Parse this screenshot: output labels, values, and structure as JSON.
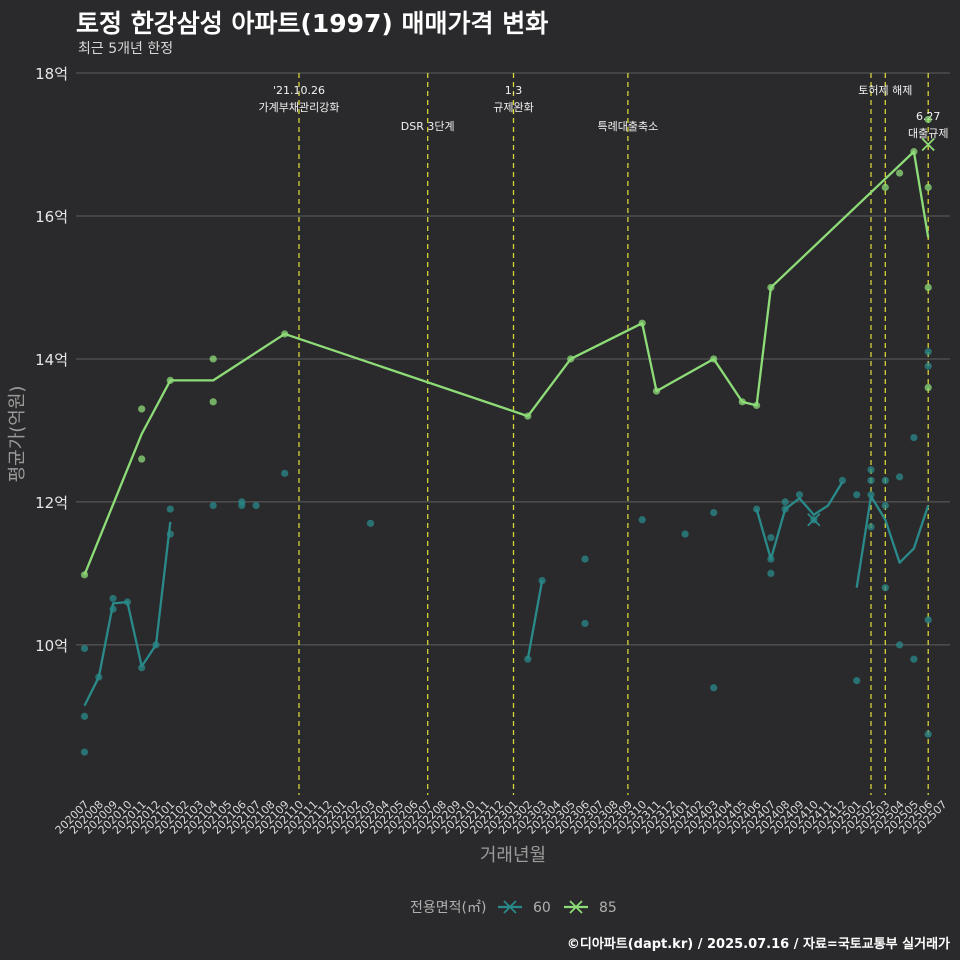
{
  "title": "토정 한강삼성 아파트(1997) 매매가격 변화",
  "subtitle": "최근 5개년 한정",
  "caption": "©디아파트(dapt.kr) / 2025.07.16 / 자료=국토교통부 실거래가",
  "colors": {
    "s60": "#2a8a8a",
    "s85": "#8edc78",
    "vline": "#d6d33a",
    "grid": "#5f5f5f",
    "text": "#e6e6e6",
    "axis_title": "#9a9a9a"
  },
  "chart_data": {
    "type": "line",
    "title": "토정 한강삼성 아파트(1997) 매매가격 변화",
    "xlabel": "거래년월",
    "ylabel": "평균가(억원)",
    "ylim": [
      7.9,
      18.0
    ],
    "yticks": [
      10,
      12,
      14,
      16,
      18
    ],
    "ytick_labels": [
      "10억",
      "12억",
      "14억",
      "16억",
      "18억"
    ],
    "categories": [
      "202007",
      "202008",
      "202009",
      "202010",
      "202011",
      "202012",
      "202101",
      "202102",
      "202103",
      "202104",
      "202105",
      "202106",
      "202107",
      "202108",
      "202109",
      "202110",
      "202111",
      "202112",
      "202201",
      "202202",
      "202203",
      "202204",
      "202205",
      "202206",
      "202207",
      "202208",
      "202209",
      "202210",
      "202211",
      "202212",
      "202301",
      "202302",
      "202303",
      "202304",
      "202305",
      "202306",
      "202307",
      "202308",
      "202309",
      "202310",
      "202311",
      "202312",
      "202401",
      "202402",
      "202403",
      "202404",
      "202405",
      "202406",
      "202407",
      "202408",
      "202409",
      "202410",
      "202411",
      "202412",
      "202501",
      "202502",
      "202503",
      "202504",
      "202505",
      "202506",
      "202507"
    ],
    "legend_title": "전용면적(㎡)",
    "series": [
      {
        "name": "60",
        "line": [
          [
            0,
            9.15
          ],
          [
            1,
            9.55
          ],
          [
            2,
            10.58
          ],
          [
            3,
            10.6
          ],
          [
            4,
            9.7
          ],
          [
            5,
            10.0
          ],
          [
            6,
            11.72
          ],
          null,
          [
            31,
            9.8
          ],
          [
            32,
            10.9
          ],
          null,
          [
            47,
            11.9
          ],
          [
            48,
            11.2
          ],
          [
            49,
            11.9
          ],
          [
            50,
            12.05
          ],
          [
            51,
            11.82
          ],
          [
            52,
            11.95
          ],
          [
            53,
            12.28
          ],
          null,
          [
            54,
            10.8
          ],
          [
            55,
            12.08
          ],
          [
            56,
            11.75
          ],
          [
            57,
            11.15
          ],
          [
            58,
            11.35
          ],
          [
            59,
            11.95
          ]
        ],
        "points": [
          [
            0,
            9.95
          ],
          [
            0,
            9.0
          ],
          [
            0,
            8.5
          ],
          [
            1,
            9.55
          ],
          [
            2,
            10.65
          ],
          [
            2,
            10.5
          ],
          [
            3,
            10.6
          ],
          [
            4,
            9.68
          ],
          [
            5,
            10.0
          ],
          [
            6,
            11.9
          ],
          [
            6,
            11.55
          ],
          [
            9,
            11.95
          ],
          [
            11,
            12.0
          ],
          [
            11,
            11.95
          ],
          [
            12,
            11.95
          ],
          [
            14,
            12.4
          ],
          [
            20,
            11.7
          ],
          [
            31,
            9.8
          ],
          [
            32,
            10.9
          ],
          [
            35,
            11.2
          ],
          [
            35,
            10.3
          ],
          [
            39,
            11.75
          ],
          [
            42,
            11.55
          ],
          [
            44,
            11.85
          ],
          [
            44,
            9.4
          ],
          [
            47,
            11.9
          ],
          [
            48,
            11.5
          ],
          [
            48,
            11.2
          ],
          [
            48,
            11.0
          ],
          [
            49,
            12.0
          ],
          [
            49,
            11.9
          ],
          [
            50,
            12.1
          ],
          [
            51,
            11.75
          ],
          [
            53,
            12.3
          ],
          [
            54,
            12.1
          ],
          [
            54,
            9.5
          ],
          [
            55,
            12.45
          ],
          [
            55,
            12.3
          ],
          [
            55,
            12.1
          ],
          [
            55,
            11.65
          ],
          [
            56,
            12.3
          ],
          [
            56,
            11.95
          ],
          [
            56,
            10.8
          ],
          [
            57,
            12.35
          ],
          [
            57,
            10.0
          ],
          [
            58,
            12.9
          ],
          [
            58,
            9.8
          ],
          [
            59,
            14.1
          ],
          [
            59,
            13.9
          ],
          [
            59,
            10.35
          ],
          [
            59,
            8.75
          ]
        ],
        "marker_x": [
          [
            51,
            11.75
          ]
        ]
      },
      {
        "name": "85",
        "line": [
          [
            0,
            10.98
          ],
          [
            4,
            12.95
          ],
          [
            6,
            13.7
          ],
          [
            9,
            13.7
          ],
          [
            14,
            14.35
          ],
          [
            31,
            13.2
          ],
          [
            34,
            14.0
          ],
          [
            39,
            14.5
          ],
          [
            40,
            13.55
          ],
          [
            44,
            14.0
          ],
          [
            46,
            13.4
          ],
          [
            47,
            13.35
          ],
          [
            48,
            15.0
          ],
          [
            58,
            16.9
          ],
          [
            59,
            15.7
          ]
        ],
        "points": [
          [
            0,
            10.98
          ],
          [
            4,
            13.3
          ],
          [
            4,
            12.6
          ],
          [
            6,
            13.7
          ],
          [
            9,
            14.0
          ],
          [
            9,
            13.4
          ],
          [
            14,
            14.35
          ],
          [
            31,
            13.2
          ],
          [
            34,
            14.0
          ],
          [
            39,
            14.5
          ],
          [
            40,
            13.55
          ],
          [
            44,
            14.0
          ],
          [
            46,
            13.4
          ],
          [
            47,
            13.35
          ],
          [
            48,
            15.0
          ],
          [
            56,
            16.4
          ],
          [
            57,
            16.6
          ],
          [
            58,
            16.9
          ],
          [
            59,
            17.35
          ],
          [
            59,
            16.4
          ],
          [
            59,
            15.0
          ],
          [
            59,
            13.6
          ]
        ],
        "marker_x": [
          [
            59,
            17.0
          ]
        ]
      }
    ],
    "vlines": [
      {
        "x": 15.0,
        "label": [
          "'21.10.26",
          "가계부채관리강화"
        ],
        "level": 0
      },
      {
        "x": 24.0,
        "label": [
          "DSR 3단계"
        ],
        "level": 1
      },
      {
        "x": 30.0,
        "label": [
          "1.3",
          "규제완화"
        ],
        "level": 0
      },
      {
        "x": 38.0,
        "label": [
          "특례대출축소"
        ],
        "level": 1
      },
      {
        "x": 55.0,
        "label": [],
        "level": 0
      },
      {
        "x": 56.0,
        "label": [
          "토허제 해제"
        ],
        "level": 0
      },
      {
        "x": 59.0,
        "label": [
          "6.27",
          "대출규제"
        ],
        "level": 2
      }
    ]
  }
}
